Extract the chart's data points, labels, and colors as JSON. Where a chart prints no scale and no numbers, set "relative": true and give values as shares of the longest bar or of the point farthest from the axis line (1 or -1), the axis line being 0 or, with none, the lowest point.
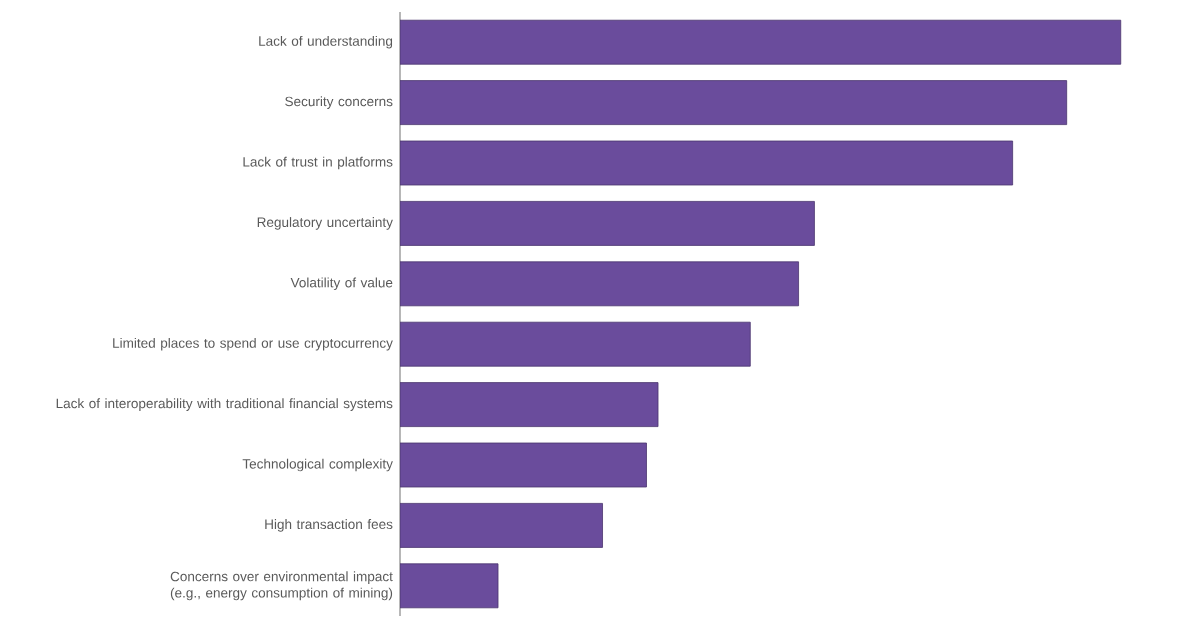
{
  "chart_data": {
    "type": "bar",
    "orientation": "horizontal",
    "relative": true,
    "color": "#6a4c9c",
    "categories": [
      "Lack of understanding",
      "Security concerns",
      "Lack of trust in platforms",
      "Regulatory uncertainty",
      "Volatility of value",
      "Limited places to spend or use cryptocurrency",
      "Lack of interoperability with traditional financial systems",
      "Technological complexity",
      "High transaction fees",
      "Concerns over environmental impact (e.g., energy consumption of mining)"
    ],
    "values": [
      1,
      0.925,
      0.85,
      0.575,
      0.553,
      0.486,
      0.358,
      0.342,
      0.281,
      0.136
    ]
  }
}
